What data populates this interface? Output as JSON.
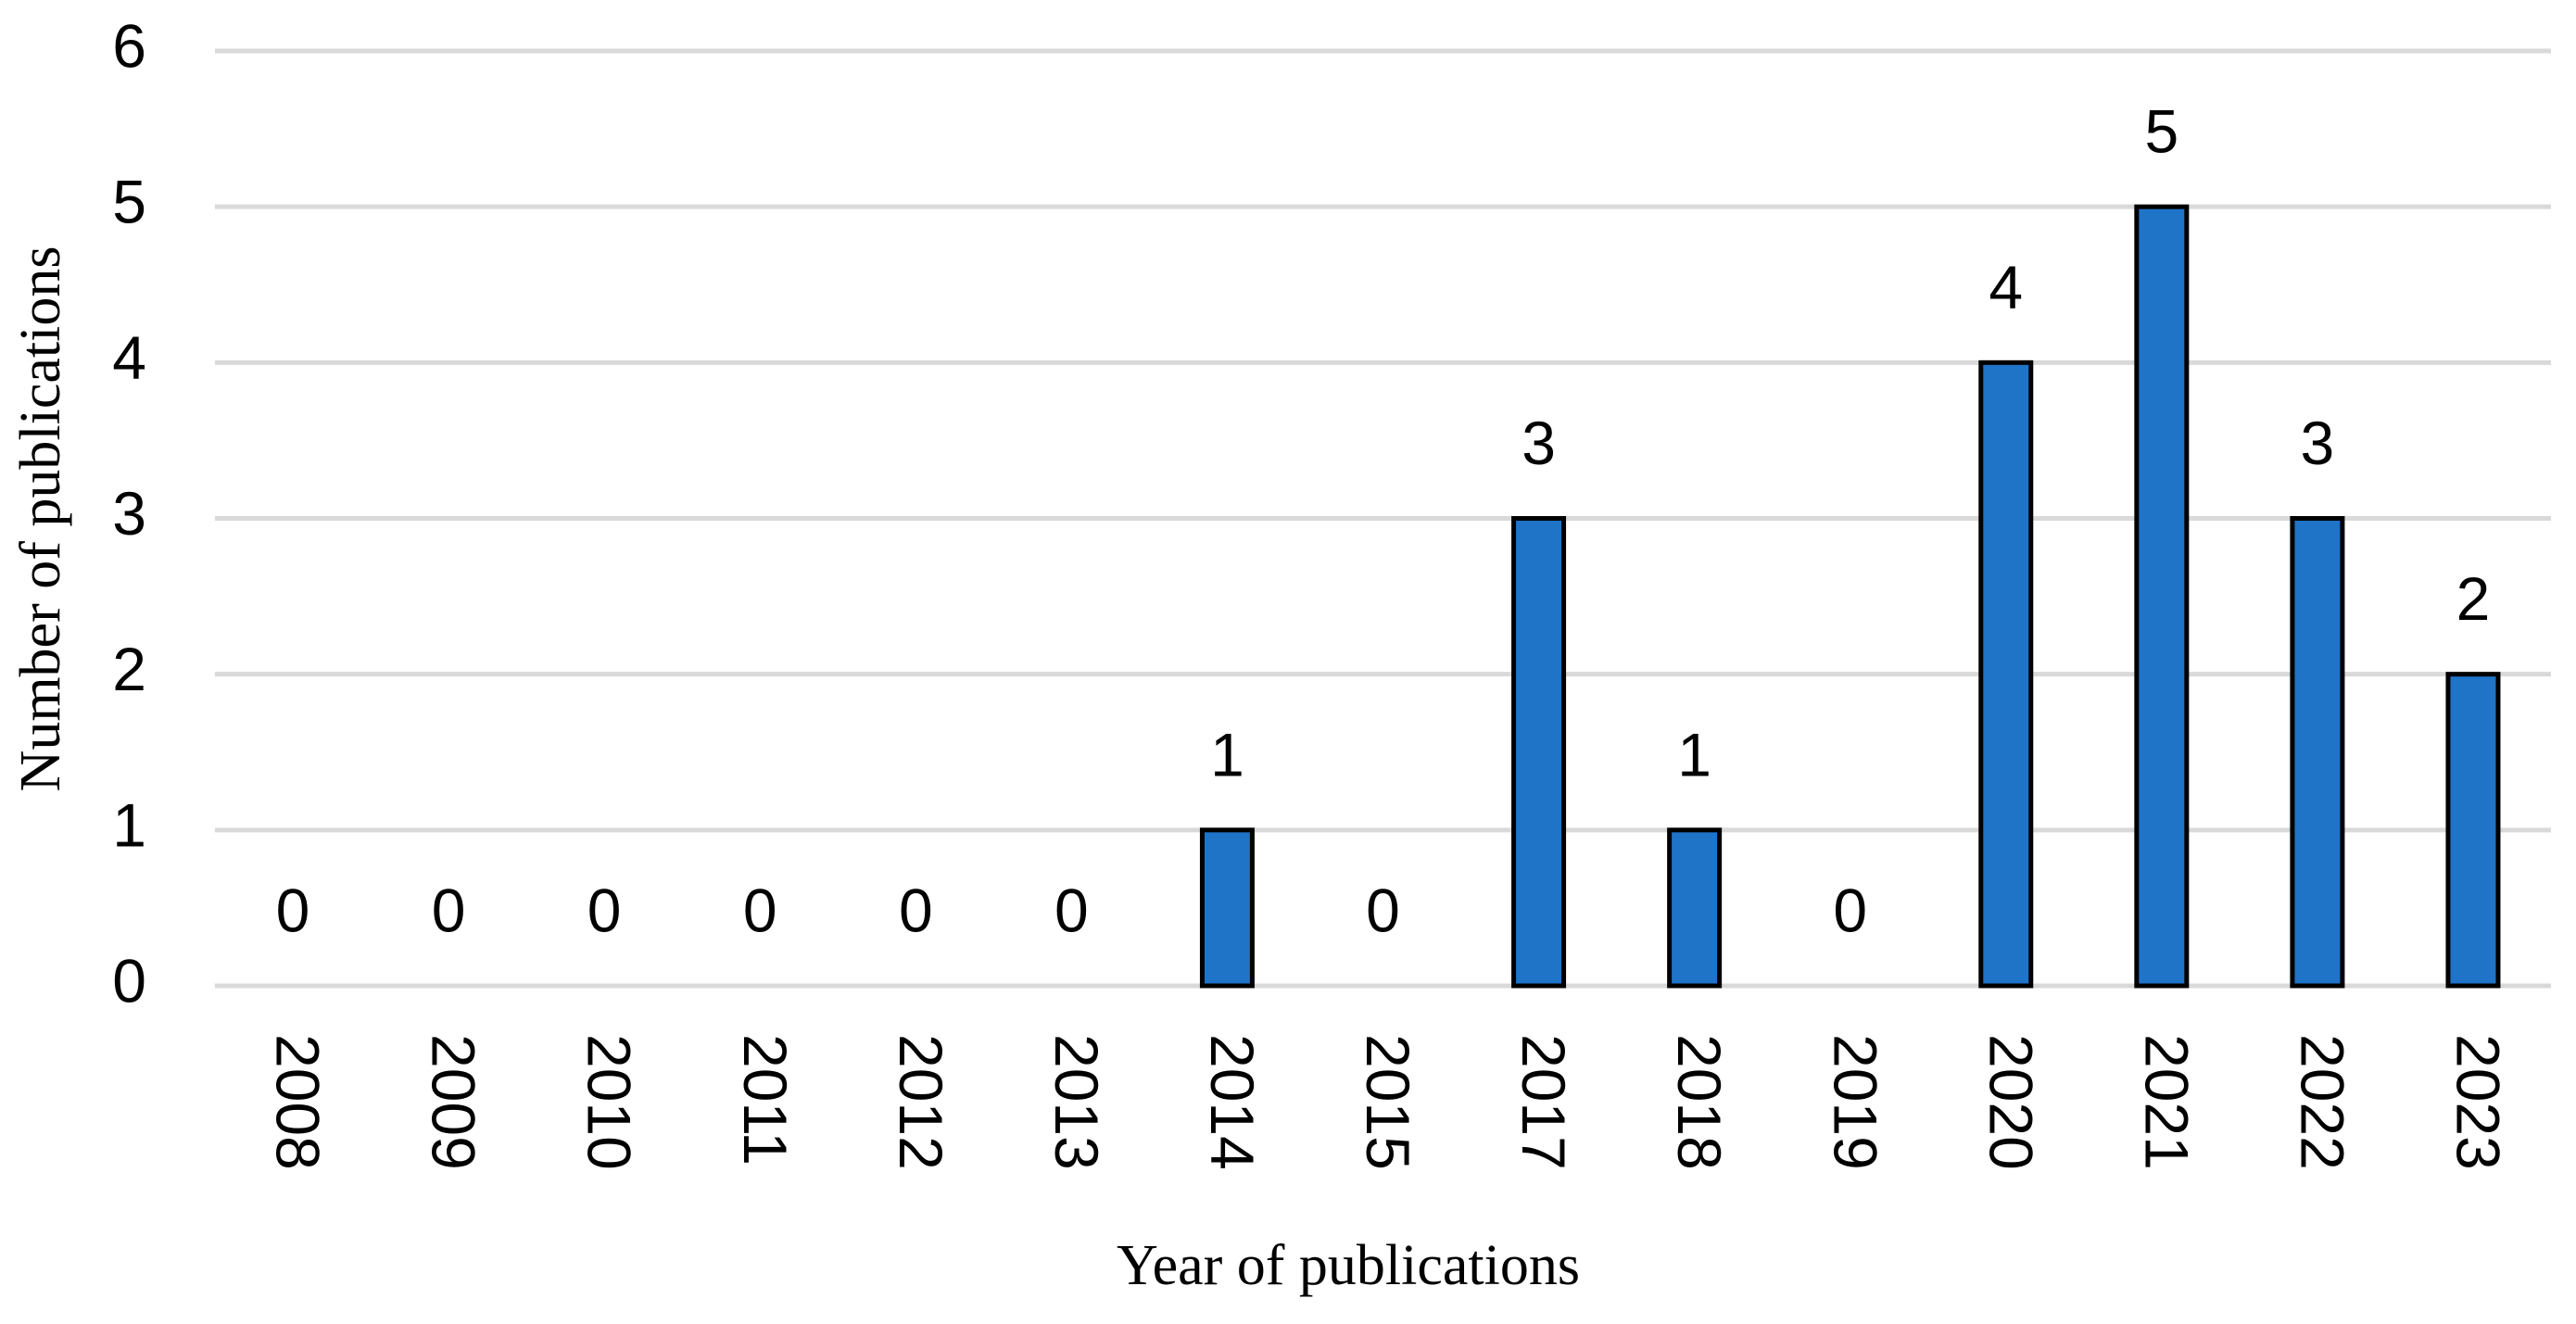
{
  "chart_data": {
    "type": "bar",
    "x_label": "Year of publications",
    "y_label": "Number of publications",
    "categories": [
      "2008",
      "2009",
      "2010",
      "2011",
      "2012",
      "2013",
      "2014",
      "2015",
      "2017",
      "2018",
      "2019",
      "2020",
      "2021",
      "2022",
      "2023"
    ],
    "values": [
      0,
      0,
      0,
      0,
      0,
      0,
      1,
      0,
      3,
      1,
      0,
      4,
      5,
      3,
      2
    ],
    "color": "#1f74c8",
    "ylim": [
      0,
      6
    ],
    "yticks": [
      0,
      1,
      2,
      3,
      4,
      5,
      6
    ],
    "grid": true
  }
}
